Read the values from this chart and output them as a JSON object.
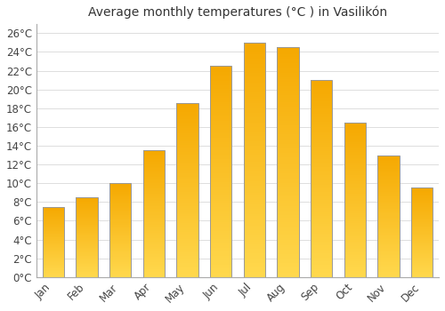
{
  "title": "Average monthly temperatures (°C ) in Vasilikón",
  "months": [
    "Jan",
    "Feb",
    "Mar",
    "Apr",
    "May",
    "Jun",
    "Jul",
    "Aug",
    "Sep",
    "Oct",
    "Nov",
    "Dec"
  ],
  "values": [
    7.5,
    8.5,
    10.0,
    13.5,
    18.5,
    22.5,
    25.0,
    24.5,
    21.0,
    16.5,
    13.0,
    9.5
  ],
  "bar_color_light": "#FFD84D",
  "bar_color_dark": "#F5A800",
  "bar_edge_color": "#999999",
  "yticks": [
    0,
    2,
    4,
    6,
    8,
    10,
    12,
    14,
    16,
    18,
    20,
    22,
    24,
    26
  ],
  "ylim": [
    0,
    27
  ],
  "grid_color": "#dddddd",
  "background_color": "#ffffff",
  "title_fontsize": 10,
  "tick_fontsize": 8.5,
  "bar_width": 0.65
}
